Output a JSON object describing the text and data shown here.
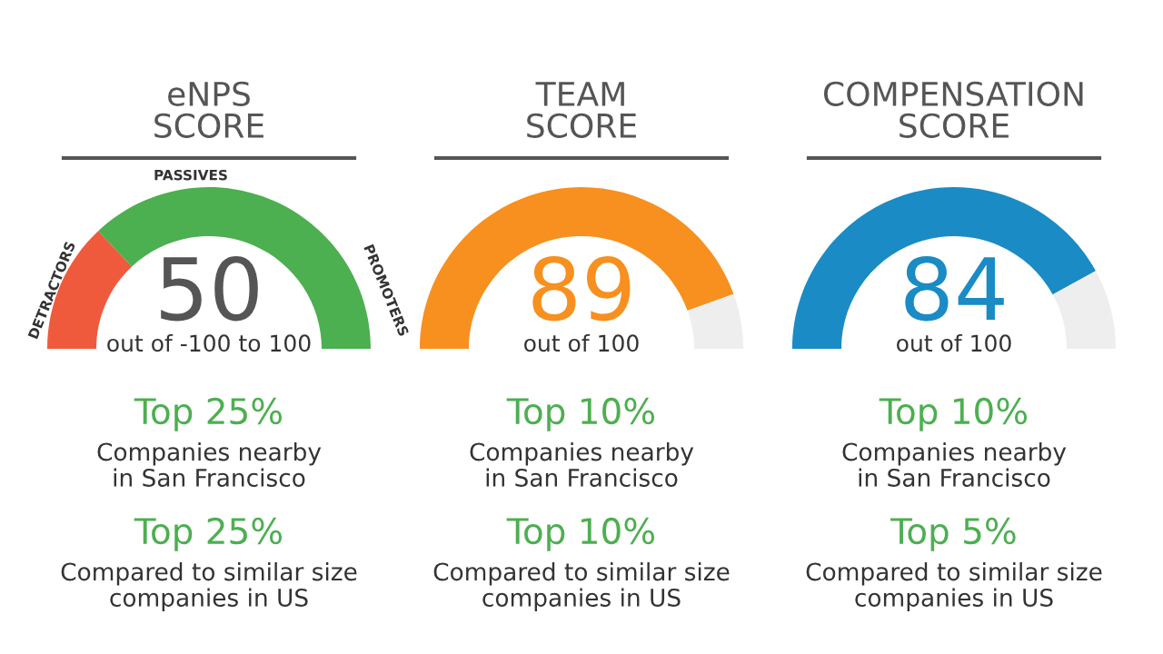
{
  "chart_data": [
    {
      "type": "donut",
      "title": "eNPS\nSCORE",
      "categories": [
        null,
        null
      ],
      "values": [
        26,
        74
      ],
      "colors": [
        "#f05a3c",
        "#4caf50"
      ],
      "annotations": [
        "PASSIVES",
        "DETRACTORS",
        "PROMOTERS",
        "50",
        "out of -100 to 100",
        "Top 25%",
        "Companies nearby\nin San Francisco",
        "Top 25%",
        "Compared to similar size\ncompanies in US"
      ]
    },
    {
      "type": "donut",
      "title": "TEAM\nSCORE",
      "categories": [
        null,
        null
      ],
      "values": [
        89,
        11
      ],
      "colors": [
        "#f7901e",
        "#eeeeee"
      ],
      "annotations": [
        "89",
        "out of 100",
        "Top 10%",
        "Companies nearby\nin San Francisco",
        "Top 10%",
        "Compared to similar size\ncompanies in US"
      ]
    },
    {
      "type": "donut",
      "title": "COMPENSATION\nSCORE",
      "categories": [
        null,
        null
      ],
      "values": [
        84,
        16
      ],
      "colors": [
        "#1a8bc4",
        "#eeeeee"
      ],
      "annotations": [
        "84",
        "out of 100",
        "Top 10%",
        "Companies nearby\nin San Francisco",
        "Top 5%",
        "Compared to similar size\ncompanies in US"
      ]
    }
  ]
}
